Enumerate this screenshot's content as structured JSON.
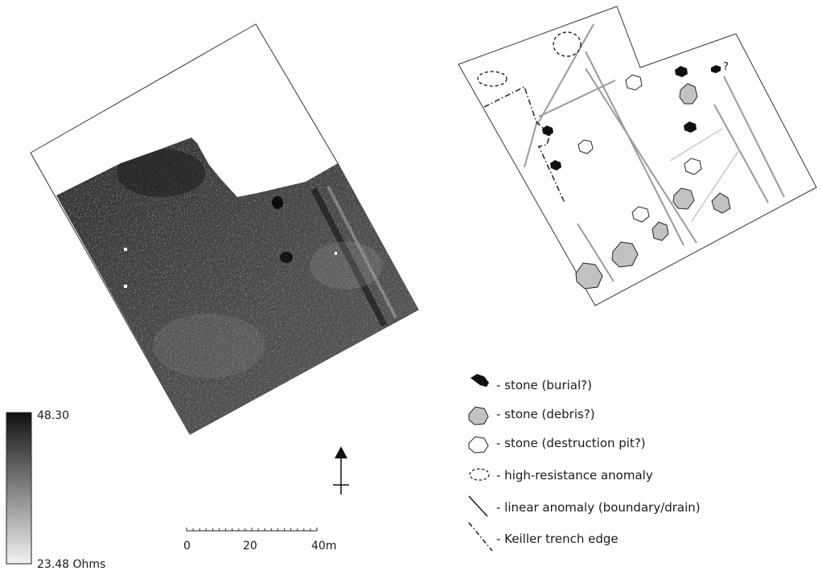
{
  "survey_map": {
    "color_bar": {
      "max_label": "48.30",
      "min_label": "23.48 Ohms",
      "color_dark": "#111111",
      "color_light": "#f2f2f2"
    },
    "scale_bar": {
      "ticks": [
        "0",
        "20",
        "40m"
      ]
    },
    "north_arrow": {
      "icon": "north-arrow-icon"
    }
  },
  "interpretation": {
    "uncertain_marker": "?",
    "legend": [
      {
        "symbol": "black-stone-icon",
        "label": "- stone (burial?)"
      },
      {
        "symbol": "grey-stone-icon",
        "label": "- stone (debris?)"
      },
      {
        "symbol": "white-stone-icon",
        "label": "- stone (destruction pit?)"
      },
      {
        "symbol": "dashed-ellipse-icon",
        "label": "- high-resistance anomaly"
      },
      {
        "symbol": "line-icon",
        "label": "- linear anomaly (boundary/drain)"
      },
      {
        "symbol": "dash-dot-line-icon",
        "label": "- Keiller trench edge"
      }
    ],
    "colors": {
      "burial": "#111111",
      "debris": "#c2c2c2",
      "pit": "#ffffff",
      "linear": "#999999"
    }
  }
}
